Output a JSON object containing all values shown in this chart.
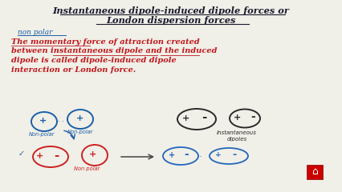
{
  "title_line1": "Instantaneous dipole-induced dipole forces or",
  "title_line2": "London dispersion forces",
  "subtitle": "non polar",
  "body_text_lines": [
    "The momentary force of attraction created",
    "between instantaneous dipole and the induced",
    "dipole is called dipole-induced dipole",
    "interaction or London force."
  ],
  "bg_color": "#f0efe8",
  "title_color": "#1a1a2e",
  "subtitle_color": "#1a5fa8",
  "body_color": "#c0161a",
  "diagram_blue": "#1a5fa8",
  "diagram_red": "#cc2222",
  "diagram_black": "#2a2a2a",
  "diagram_blue2": "#2266bb"
}
